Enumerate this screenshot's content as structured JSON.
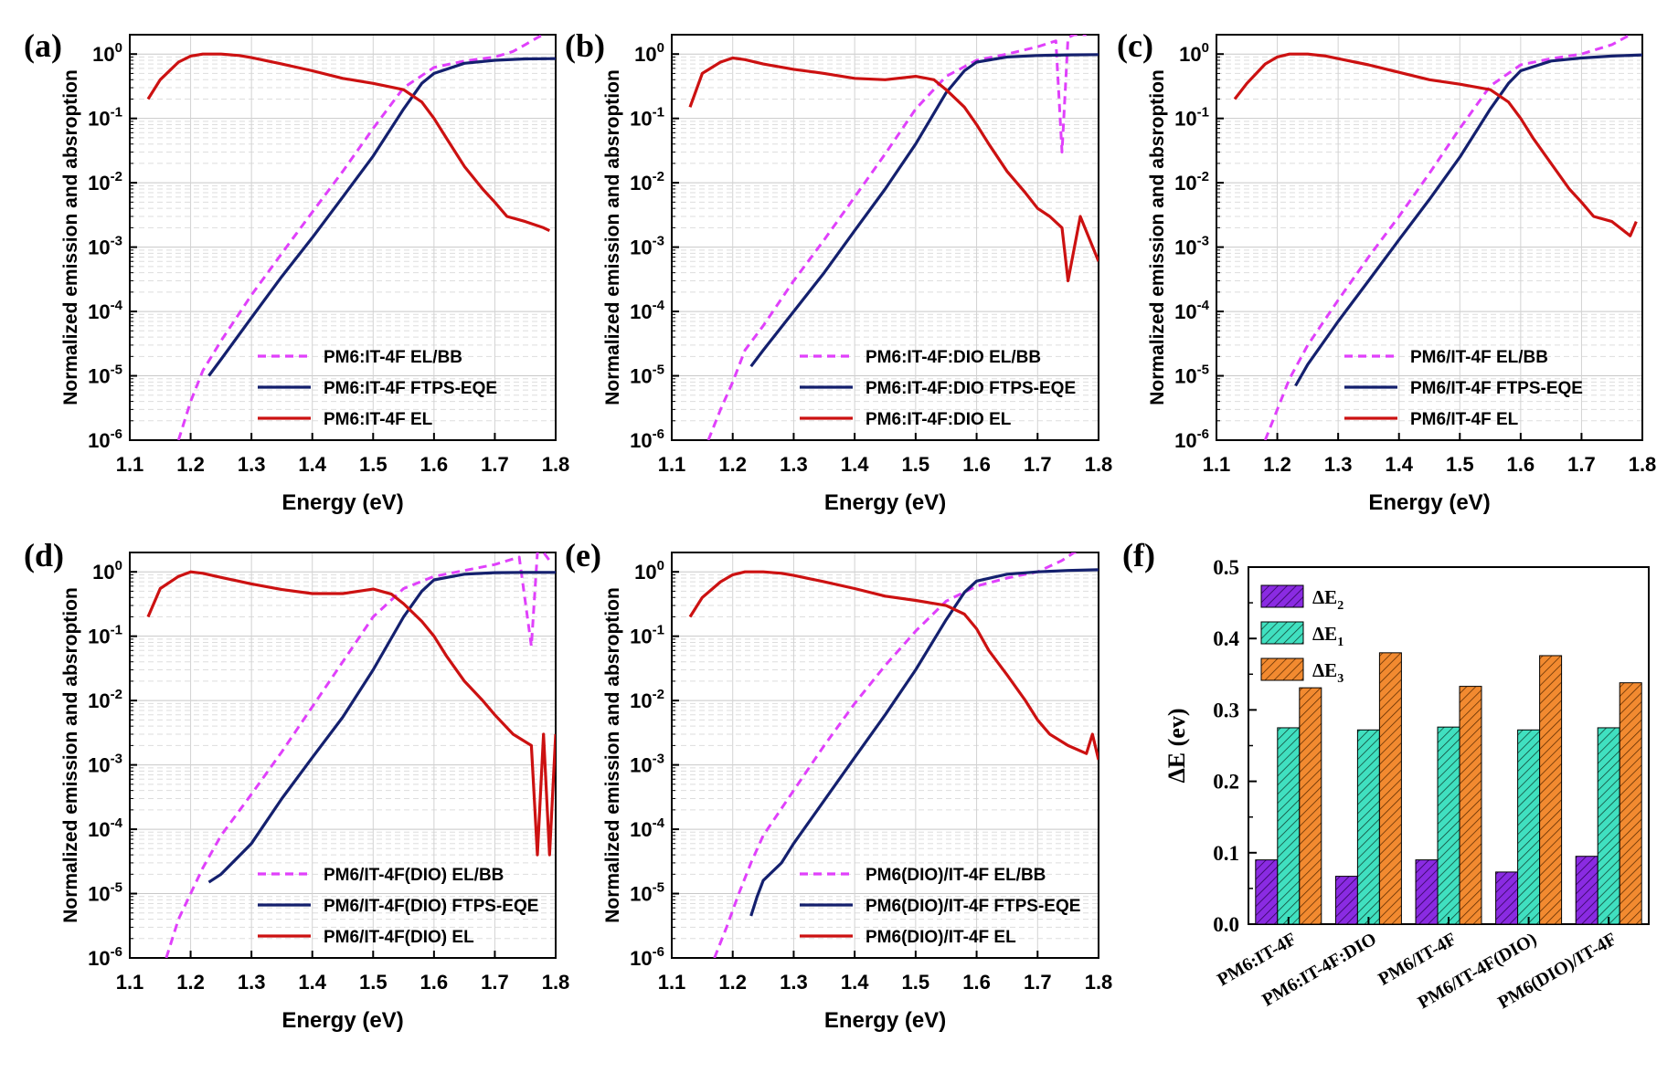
{
  "colors": {
    "el_bb": "#e040fb",
    "ftps_eqe": "#14206e",
    "el": "#cc1111",
    "dE2": "#8a2be2",
    "dE1": "#40e0c0",
    "dE3": "#f28a30"
  },
  "chart_data": [
    {
      "panel": "(a)",
      "type": "line",
      "xlabel": "Energy (eV)",
      "ylabel": "Normalized emission and absroption",
      "xlim": [
        1.1,
        1.8
      ],
      "ylim": [
        1e-06,
        2
      ],
      "yscale": "log",
      "xticks": [
        "1.1",
        "1.2",
        "1.3",
        "1.4",
        "1.5",
        "1.6",
        "1.7",
        "1.8"
      ],
      "yticks": [
        "10-6",
        "10-5",
        "10-4",
        "10-3",
        "10-2",
        "10-1",
        "100"
      ],
      "grid": true,
      "legend_position": "lower-center",
      "series": [
        {
          "name": "PM6:IT-4F EL/BB",
          "style": "dashed",
          "color_key": "el_bb",
          "x": [
            1.18,
            1.2,
            1.22,
            1.25,
            1.3,
            1.35,
            1.4,
            1.45,
            1.5,
            1.55,
            1.6,
            1.65,
            1.7,
            1.73,
            1.75,
            1.77,
            1.78
          ],
          "y": [
            1e-06,
            4e-06,
            1.2e-05,
            3.5e-05,
            0.00018,
            0.0008,
            0.0035,
            0.015,
            0.07,
            0.3,
            0.62,
            0.78,
            0.9,
            1.1,
            1.4,
            1.8,
            2.0
          ]
        },
        {
          "name": "PM6:IT-4F FTPS-EQE",
          "style": "solid",
          "color_key": "ftps_eqe",
          "x": [
            1.23,
            1.25,
            1.3,
            1.35,
            1.4,
            1.45,
            1.5,
            1.55,
            1.58,
            1.6,
            1.65,
            1.7,
            1.75,
            1.8
          ],
          "y": [
            1e-05,
            1.8e-05,
            8e-05,
            0.00035,
            0.0014,
            0.006,
            0.026,
            0.14,
            0.35,
            0.5,
            0.72,
            0.8,
            0.84,
            0.85
          ]
        },
        {
          "name": "PM6:IT-4F EL",
          "style": "solid",
          "color_key": "el",
          "x": [
            1.13,
            1.15,
            1.18,
            1.2,
            1.22,
            1.25,
            1.28,
            1.3,
            1.35,
            1.4,
            1.45,
            1.5,
            1.55,
            1.58,
            1.6,
            1.62,
            1.65,
            1.68,
            1.7,
            1.72,
            1.75,
            1.78,
            1.79
          ],
          "y": [
            0.2,
            0.4,
            0.75,
            0.93,
            1.0,
            1.0,
            0.95,
            0.88,
            0.7,
            0.55,
            0.42,
            0.35,
            0.28,
            0.18,
            0.1,
            0.05,
            0.018,
            0.008,
            0.005,
            0.003,
            0.0025,
            0.002,
            0.0018
          ]
        }
      ]
    },
    {
      "panel": "(b)",
      "type": "line",
      "xlabel": "Energy (eV)",
      "ylabel": "Normalized emission and absroption",
      "xlim": [
        1.1,
        1.8
      ],
      "ylim": [
        1e-06,
        2
      ],
      "yscale": "log",
      "xticks": [
        "1.1",
        "1.2",
        "1.3",
        "1.4",
        "1.5",
        "1.6",
        "1.7",
        "1.8"
      ],
      "yticks": [
        "10-6",
        "10-5",
        "10-4",
        "10-3",
        "10-2",
        "10-1",
        "100"
      ],
      "grid": true,
      "legend_position": "lower-center",
      "series": [
        {
          "name": "PM6:IT-4F:DIO EL/BB",
          "style": "dashed",
          "color_key": "el_bb",
          "x": [
            1.16,
            1.18,
            1.2,
            1.22,
            1.25,
            1.3,
            1.35,
            1.4,
            1.45,
            1.5,
            1.55,
            1.6,
            1.65,
            1.7,
            1.73,
            1.74,
            1.75,
            1.76,
            1.78
          ],
          "y": [
            1e-06,
            3e-06,
            8e-06,
            2.5e-05,
            6e-05,
            0.0003,
            0.0013,
            0.006,
            0.028,
            0.14,
            0.45,
            0.8,
            1.0,
            1.3,
            1.6,
            0.03,
            1.8,
            2.0,
            2.0
          ]
        },
        {
          "name": "PM6:IT-4F:DIO FTPS-EQE",
          "style": "solid",
          "color_key": "ftps_eqe",
          "x": [
            1.23,
            1.25,
            1.3,
            1.35,
            1.4,
            1.45,
            1.5,
            1.55,
            1.58,
            1.6,
            1.65,
            1.7,
            1.75,
            1.8
          ],
          "y": [
            1.4e-05,
            2.5e-05,
            0.0001,
            0.0004,
            0.0018,
            0.008,
            0.04,
            0.25,
            0.55,
            0.75,
            0.9,
            0.95,
            0.97,
            0.98
          ]
        },
        {
          "name": "PM6:IT-4F:DIO EL",
          "style": "solid",
          "color_key": "el",
          "x": [
            1.13,
            1.15,
            1.18,
            1.2,
            1.22,
            1.25,
            1.3,
            1.35,
            1.4,
            1.45,
            1.5,
            1.53,
            1.55,
            1.58,
            1.6,
            1.62,
            1.65,
            1.68,
            1.7,
            1.72,
            1.74,
            1.75,
            1.77,
            1.8
          ],
          "y": [
            0.15,
            0.5,
            0.75,
            0.87,
            0.82,
            0.7,
            0.58,
            0.5,
            0.42,
            0.4,
            0.45,
            0.4,
            0.28,
            0.15,
            0.08,
            0.04,
            0.015,
            0.007,
            0.004,
            0.003,
            0.002,
            0.0003,
            0.003,
            0.0006
          ]
        }
      ]
    },
    {
      "panel": "(c)",
      "type": "line",
      "xlabel": "Energy (eV)",
      "ylabel": "Normalized emission and absroption",
      "xlim": [
        1.1,
        1.8
      ],
      "ylim": [
        1e-06,
        2
      ],
      "yscale": "log",
      "xticks": [
        "1.1",
        "1.2",
        "1.3",
        "1.4",
        "1.5",
        "1.6",
        "1.7",
        "1.8"
      ],
      "yticks": [
        "10-6",
        "10-5",
        "10-4",
        "10-3",
        "10-2",
        "10-1",
        "100"
      ],
      "grid": true,
      "legend_position": "lower-center",
      "series": [
        {
          "name": "PM6/IT-4F EL/BB",
          "style": "dashed",
          "color_key": "el_bb",
          "x": [
            1.18,
            1.2,
            1.22,
            1.25,
            1.3,
            1.35,
            1.4,
            1.45,
            1.5,
            1.55,
            1.6,
            1.65,
            1.7,
            1.75,
            1.78
          ],
          "y": [
            1e-06,
            3e-06,
            9e-06,
            3e-05,
            0.00015,
            0.0007,
            0.003,
            0.014,
            0.07,
            0.32,
            0.68,
            0.85,
            1.0,
            1.4,
            2.0
          ]
        },
        {
          "name": "PM6/IT-4F FTPS-EQE",
          "style": "solid",
          "color_key": "ftps_eqe",
          "x": [
            1.23,
            1.25,
            1.3,
            1.35,
            1.4,
            1.45,
            1.5,
            1.55,
            1.58,
            1.6,
            1.65,
            1.7,
            1.75,
            1.8
          ],
          "y": [
            7e-06,
            1.5e-05,
            7e-05,
            0.0003,
            0.0013,
            0.0055,
            0.025,
            0.14,
            0.35,
            0.55,
            0.78,
            0.87,
            0.93,
            0.97
          ]
        },
        {
          "name": "PM6/IT-4F EL",
          "style": "solid",
          "color_key": "el",
          "x": [
            1.13,
            1.15,
            1.18,
            1.2,
            1.22,
            1.25,
            1.28,
            1.3,
            1.35,
            1.4,
            1.45,
            1.5,
            1.55,
            1.58,
            1.6,
            1.62,
            1.65,
            1.68,
            1.7,
            1.72,
            1.75,
            1.78,
            1.79
          ],
          "y": [
            0.2,
            0.35,
            0.7,
            0.9,
            1.0,
            1.0,
            0.93,
            0.85,
            0.68,
            0.52,
            0.4,
            0.34,
            0.28,
            0.18,
            0.1,
            0.05,
            0.02,
            0.008,
            0.005,
            0.003,
            0.0025,
            0.0015,
            0.0025
          ]
        }
      ]
    },
    {
      "panel": "(d)",
      "type": "line",
      "xlabel": "Energy (eV)",
      "ylabel": "Normalized emission and absroption",
      "xlim": [
        1.1,
        1.8
      ],
      "ylim": [
        1e-06,
        2
      ],
      "yscale": "log",
      "xticks": [
        "1.1",
        "1.2",
        "1.3",
        "1.4",
        "1.5",
        "1.6",
        "1.7",
        "1.8"
      ],
      "yticks": [
        "10-6",
        "10-5",
        "10-4",
        "10-3",
        "10-2",
        "10-1",
        "100"
      ],
      "grid": true,
      "legend_position": "lower-center",
      "series": [
        {
          "name": "PM6/IT-4F(DIO) EL/BB",
          "style": "dashed",
          "color_key": "el_bb",
          "x": [
            1.16,
            1.18,
            1.2,
            1.22,
            1.25,
            1.3,
            1.35,
            1.4,
            1.45,
            1.5,
            1.55,
            1.6,
            1.65,
            1.7,
            1.74,
            1.76,
            1.77,
            1.78,
            1.79
          ],
          "y": [
            1e-06,
            4e-06,
            1e-05,
            2.5e-05,
            8e-05,
            0.00035,
            0.0016,
            0.008,
            0.04,
            0.2,
            0.55,
            0.85,
            1.05,
            1.3,
            1.7,
            0.07,
            2.0,
            2.0,
            1.5
          ]
        },
        {
          "name": "PM6/IT-4F(DIO) FTPS-EQE",
          "style": "solid",
          "color_key": "ftps_eqe",
          "x": [
            1.23,
            1.25,
            1.3,
            1.35,
            1.4,
            1.45,
            1.5,
            1.55,
            1.58,
            1.6,
            1.65,
            1.7,
            1.75,
            1.8
          ],
          "y": [
            1.5e-05,
            2e-05,
            6e-05,
            0.0003,
            0.0013,
            0.0055,
            0.03,
            0.2,
            0.5,
            0.75,
            0.92,
            0.97,
            0.98,
            0.98
          ]
        },
        {
          "name": "PM6/IT-4F(DIO) EL",
          "style": "solid",
          "color_key": "el",
          "x": [
            1.13,
            1.15,
            1.18,
            1.2,
            1.22,
            1.25,
            1.3,
            1.35,
            1.4,
            1.45,
            1.5,
            1.53,
            1.55,
            1.58,
            1.6,
            1.62,
            1.65,
            1.68,
            1.7,
            1.73,
            1.76,
            1.77,
            1.78,
            1.79,
            1.8
          ],
          "y": [
            0.2,
            0.55,
            0.85,
            1.0,
            0.95,
            0.82,
            0.65,
            0.53,
            0.46,
            0.46,
            0.54,
            0.45,
            0.32,
            0.17,
            0.1,
            0.05,
            0.02,
            0.01,
            0.006,
            0.003,
            0.002,
            4e-05,
            0.003,
            4e-05,
            0.003
          ]
        }
      ]
    },
    {
      "panel": "(e)",
      "type": "line",
      "xlabel": "Energy (eV)",
      "ylabel": "Normalized emission and absroption",
      "xlim": [
        1.1,
        1.8
      ],
      "ylim": [
        1e-06,
        2
      ],
      "yscale": "log",
      "xticks": [
        "1.1",
        "1.2",
        "1.3",
        "1.4",
        "1.5",
        "1.6",
        "1.7",
        "1.8"
      ],
      "yticks": [
        "10-6",
        "10-5",
        "10-4",
        "10-3",
        "10-2",
        "10-1",
        "100"
      ],
      "grid": true,
      "legend_position": "lower-center",
      "series": [
        {
          "name": "PM6(DIO)/IT-4F EL/BB",
          "style": "dashed",
          "color_key": "el_bb",
          "x": [
            1.17,
            1.19,
            1.21,
            1.23,
            1.25,
            1.3,
            1.35,
            1.4,
            1.45,
            1.5,
            1.55,
            1.6,
            1.65,
            1.7,
            1.74,
            1.76,
            1.77
          ],
          "y": [
            1e-06,
            3e-06,
            1e-05,
            3e-05,
            8e-05,
            0.0004,
            0.002,
            0.009,
            0.035,
            0.12,
            0.35,
            0.6,
            0.8,
            1.0,
            1.5,
            2.0,
            2.0
          ]
        },
        {
          "name": "PM6(DIO)/IT-4F FTPS-EQE",
          "style": "solid",
          "color_key": "ftps_eqe",
          "x": [
            1.23,
            1.24,
            1.25,
            1.28,
            1.3,
            1.35,
            1.4,
            1.45,
            1.5,
            1.55,
            1.58,
            1.6,
            1.65,
            1.7,
            1.75,
            1.8
          ],
          "y": [
            4.5e-06,
            9e-06,
            1.6e-05,
            3e-05,
            6e-05,
            0.00028,
            0.0013,
            0.006,
            0.03,
            0.18,
            0.48,
            0.72,
            0.92,
            1.0,
            1.05,
            1.08
          ]
        },
        {
          "name": "PM6(DIO)/IT-4F EL",
          "style": "solid",
          "color_key": "el",
          "x": [
            1.13,
            1.15,
            1.18,
            1.2,
            1.22,
            1.25,
            1.28,
            1.3,
            1.35,
            1.4,
            1.45,
            1.5,
            1.55,
            1.58,
            1.6,
            1.62,
            1.65,
            1.68,
            1.7,
            1.72,
            1.75,
            1.78,
            1.79,
            1.8
          ],
          "y": [
            0.2,
            0.4,
            0.7,
            0.9,
            1.0,
            1.0,
            0.95,
            0.88,
            0.7,
            0.55,
            0.42,
            0.36,
            0.3,
            0.22,
            0.13,
            0.06,
            0.025,
            0.01,
            0.005,
            0.003,
            0.002,
            0.0015,
            0.003,
            0.0012
          ]
        }
      ]
    },
    {
      "panel": "(f)",
      "type": "bar",
      "ylabel": "ΔE (ev)",
      "ylim": [
        0.0,
        0.5
      ],
      "yticks": [
        "0.0",
        "0.1",
        "0.2",
        "0.3",
        "0.4",
        "0.5"
      ],
      "categories": [
        "PM6:IT-4F",
        "PM6:IT-4F:DIO",
        "PM6/IT-4F",
        "PM6/IT-4F(DIO)",
        "PM6(DIO)/IT-4F"
      ],
      "legend_position": "top-left",
      "series": [
        {
          "name": "ΔE2",
          "color_key": "dE2",
          "values": [
            0.09,
            0.067,
            0.09,
            0.073,
            0.095
          ]
        },
        {
          "name": "ΔE1",
          "color_key": "dE1",
          "values": [
            0.275,
            0.272,
            0.276,
            0.272,
            0.275
          ]
        },
        {
          "name": "ΔE3",
          "color_key": "dE3",
          "values": [
            0.331,
            0.38,
            0.333,
            0.376,
            0.338
          ]
        }
      ]
    }
  ]
}
